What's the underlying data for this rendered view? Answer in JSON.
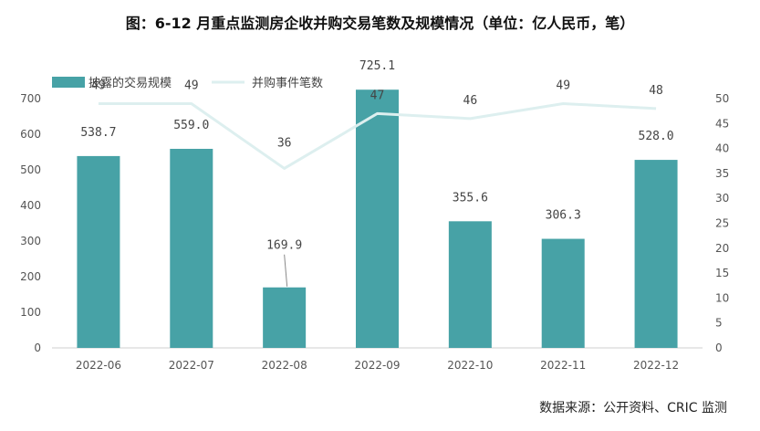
{
  "chart_data": {
    "type": "bar",
    "title": "图：6-12 月重点监测房企收并购交易笔数及规模情况（单位：亿人民币，笔）",
    "categories": [
      "2022-06",
      "2022-07",
      "2022-08",
      "2022-09",
      "2022-10",
      "2022-11",
      "2022-12"
    ],
    "series": [
      {
        "name": "披露的交易规模",
        "type": "bar",
        "axis": "left",
        "values": [
          538.7,
          559.0,
          169.9,
          725.1,
          355.6,
          306.3,
          528.0
        ],
        "value_labels": [
          "538.7",
          "559.0",
          "169.9",
          "725.1",
          "355.6",
          "306.3",
          "528.0"
        ]
      },
      {
        "name": "并购事件笔数",
        "type": "line",
        "axis": "right",
        "values": [
          49,
          49,
          36,
          47,
          46,
          49,
          48
        ],
        "value_labels": [
          "49",
          "49",
          "36",
          "47",
          "46",
          "49",
          "48"
        ]
      }
    ],
    "y_left": {
      "min": 0,
      "max": 700,
      "ticks": [
        0,
        100,
        200,
        300,
        400,
        500,
        600,
        700
      ]
    },
    "y_right": {
      "min": 0,
      "max": 50,
      "ticks": [
        0,
        5,
        10,
        15,
        20,
        25,
        30,
        35,
        40,
        45,
        50
      ]
    },
    "legend_position": "top-left",
    "grid": false,
    "colors": {
      "bar": "#47a2a6",
      "line": "#ddefef",
      "axis": "#cfcfcf"
    }
  },
  "source": "数据来源：公开资料、CRIC 监测"
}
